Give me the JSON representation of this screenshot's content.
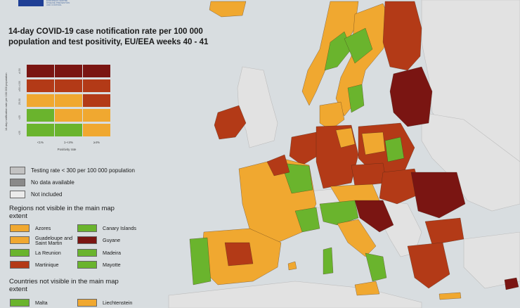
{
  "title": "14-day COVID-19 case notification rate per 100 000 population and test positivity, EU/EEA weeks 40 - 41",
  "logo_lines": [
    "EUROPEAN CENTRE",
    "DISEASE PREVENTION",
    "AND CONTROL"
  ],
  "colors": {
    "dark_red": "#7a1512",
    "red": "#b33a17",
    "orange": "#f0a830",
    "green": "#6ab42d",
    "grey_testing": "#c2c2c2",
    "grey_nodata": "#8a8a8a",
    "grey_not_included": "#ebebeb",
    "sea": "#d8dde0"
  },
  "matrix": {
    "y_axis_title": "14-day notification rate per 100 000 population",
    "y_ticks": [
      "≥150",
      "≥50-<150",
      "25-50",
      "<25",
      "<25"
    ],
    "x_ticks": [
      "<1%",
      "1-<4%",
      "≥4%"
    ],
    "x_axis_title": "Positivity rate",
    "cells": [
      [
        "dark_red",
        "dark_red",
        "dark_red"
      ],
      [
        "red",
        "red",
        "red"
      ],
      [
        "orange",
        "orange",
        "red"
      ],
      [
        "green",
        "orange",
        "orange"
      ],
      [
        "green",
        "green",
        "orange"
      ]
    ]
  },
  "legend_grey": [
    {
      "label": "Testing rate < 300 per 100 000 population",
      "color": "grey_testing"
    },
    {
      "label": "No data available",
      "color": "grey_nodata"
    },
    {
      "label": "Not included",
      "color": "grey_not_included"
    }
  ],
  "regions_heading": "Regions not visible in the main map extent",
  "regions": [
    {
      "label": "Azores",
      "color": "orange"
    },
    {
      "label": "Canary Islands",
      "color": "green"
    },
    {
      "label": "Guadeloupe and Saint Martin",
      "color": "orange"
    },
    {
      "label": "Guyane",
      "color": "dark_red"
    },
    {
      "label": "La Reunion",
      "color": "green"
    },
    {
      "label": "Madeira",
      "color": "green"
    },
    {
      "label": "Martinique",
      "color": "red"
    },
    {
      "label": "Mayotte",
      "color": "green"
    }
  ],
  "countries_heading": "Countries not visible in the main map extent",
  "countries": [
    {
      "label": "Malta",
      "color": "green"
    },
    {
      "label": "Liechtenstein",
      "color": "orange"
    }
  ]
}
